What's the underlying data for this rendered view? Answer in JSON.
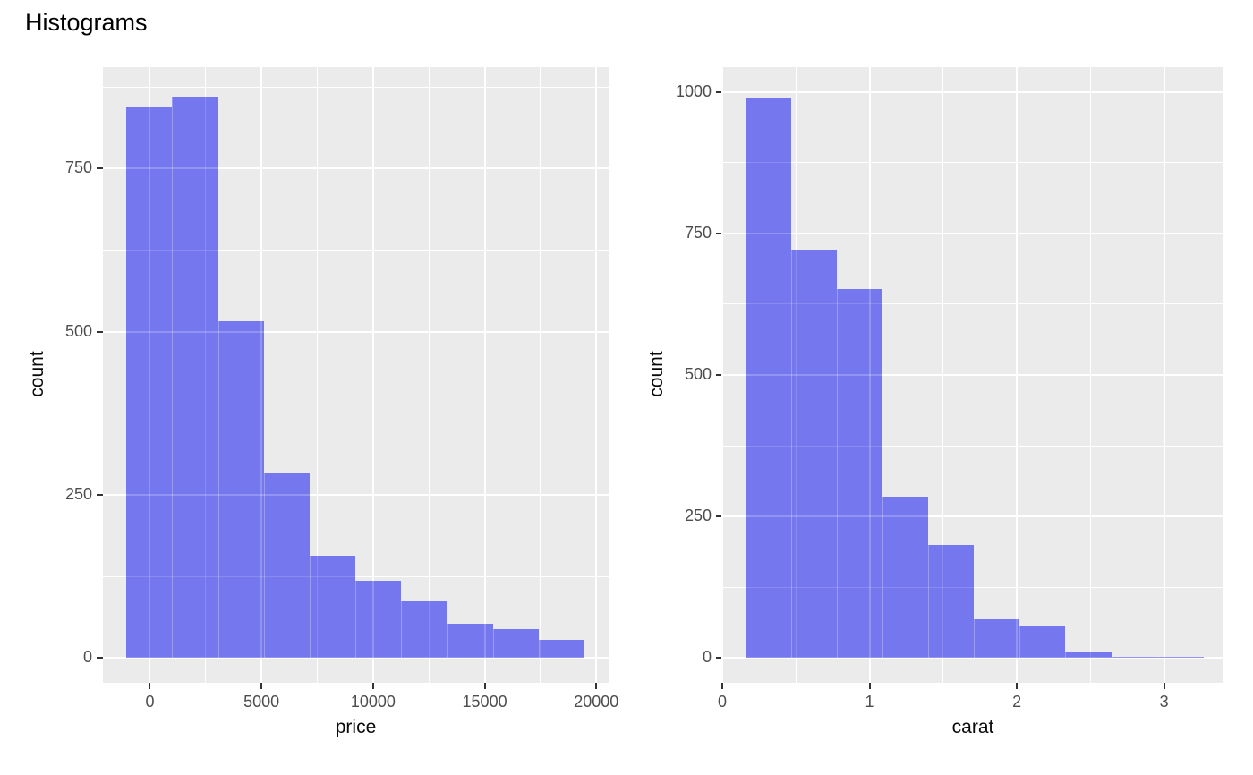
{
  "title": "Histograms",
  "colors": {
    "bar_fill": "#7477ee",
    "panel_background": "#ebebeb",
    "gridline": "#ffffff",
    "tick_mark": "#333333",
    "tick_label": "#4d4d4d",
    "axis_label": "#0a0a0a",
    "title": "#000000",
    "figure_background": "#ffffff"
  },
  "chart_data": [
    {
      "type": "bar",
      "name": "price-histogram",
      "title": "",
      "xlabel": "price",
      "ylabel": "count",
      "x_ticks": [
        {
          "v": 0,
          "label": "0"
        },
        {
          "v": 5000,
          "label": "5000"
        },
        {
          "v": 10000,
          "label": "10000"
        },
        {
          "v": 15000,
          "label": "15000"
        },
        {
          "v": 20000,
          "label": "20000"
        }
      ],
      "y_ticks": [
        {
          "v": 0,
          "label": "0"
        },
        {
          "v": 250,
          "label": "250"
        },
        {
          "v": 500,
          "label": "500"
        },
        {
          "v": 750,
          "label": "750"
        }
      ],
      "x_minor": [
        2500,
        7500,
        12500,
        17500
      ],
      "y_minor": [
        125,
        375,
        625,
        875
      ],
      "xlim": [
        -2105,
        20551
      ],
      "ylim": [
        -37.7,
        905.3
      ],
      "grid": true,
      "legend_position": "none",
      "bin_edges": [
        -1050,
        1000,
        3055,
        5110,
        7160,
        9215,
        11265,
        13320,
        15370,
        17425,
        19475
      ],
      "counts": [
        844,
        860,
        516,
        283,
        157,
        118,
        87,
        53,
        45,
        28
      ]
    },
    {
      "type": "bar",
      "name": "carat-histogram",
      "title": "",
      "xlabel": "carat",
      "ylabel": "count",
      "x_ticks": [
        {
          "v": 0,
          "label": "0"
        },
        {
          "v": 1,
          "label": "1"
        },
        {
          "v": 2,
          "label": "2"
        },
        {
          "v": 3,
          "label": "3"
        }
      ],
      "y_ticks": [
        {
          "v": 0,
          "label": "0"
        },
        {
          "v": 250,
          "label": "250"
        },
        {
          "v": 500,
          "label": "500"
        },
        {
          "v": 750,
          "label": "750"
        },
        {
          "v": 1000,
          "label": "1000"
        }
      ],
      "x_minor": [
        0.5,
        1.5,
        2.5
      ],
      "y_minor": [
        125,
        375,
        625,
        875
      ],
      "xlim": [
        0,
        3.403
      ],
      "ylim": [
        -43.5,
        1043.7
      ],
      "grid": true,
      "legend_position": "none",
      "bin_edges": [
        0.16,
        0.47,
        0.78,
        1.09,
        1.4,
        1.71,
        2.02,
        2.33,
        2.65,
        2.96,
        3.27
      ],
      "counts": [
        990,
        722,
        652,
        285,
        200,
        68,
        58,
        10,
        2,
        2
      ]
    }
  ]
}
